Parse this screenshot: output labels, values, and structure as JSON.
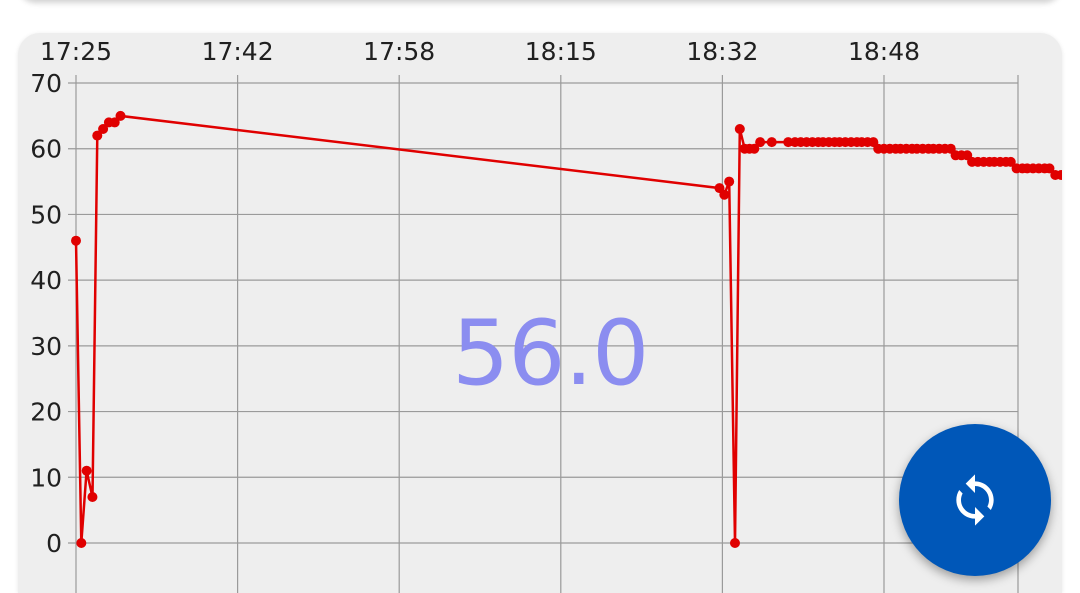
{
  "display": {
    "current_value": "56.0"
  },
  "refresh_button": {
    "icon": "sync-icon",
    "color": "#0057b8"
  },
  "chart_data": {
    "type": "line",
    "title": "",
    "xlabel": "",
    "ylabel": "",
    "line_color": "#e00000",
    "grid": true,
    "ylim": [
      0,
      70
    ],
    "y_ticks": [
      0,
      10,
      20,
      30,
      40,
      50,
      60,
      70
    ],
    "x_ticks": [
      "17:25",
      "17:42",
      "17:58",
      "18:15",
      "18:32",
      "18:48"
    ],
    "x_tick_minutes": [
      0,
      16.7,
      33.4,
      50.1,
      66.8,
      83.5
    ],
    "series": [
      {
        "points": [
          [
            0.0,
            46
          ],
          [
            0.55,
            0
          ],
          [
            1.1,
            11
          ],
          [
            1.7,
            7
          ],
          [
            2.2,
            62
          ],
          [
            2.8,
            63
          ],
          [
            3.4,
            64
          ],
          [
            4.0,
            64
          ],
          [
            4.6,
            65
          ],
          [
            66.5,
            54
          ],
          [
            67.0,
            53
          ],
          [
            67.5,
            55
          ],
          [
            68.1,
            0
          ],
          [
            68.6,
            63
          ],
          [
            69.1,
            60
          ],
          [
            69.6,
            60
          ],
          [
            70.1,
            60
          ],
          [
            70.7,
            61
          ],
          [
            71.9,
            61
          ],
          [
            73.6,
            61
          ],
          [
            74.3,
            61
          ],
          [
            74.9,
            61
          ],
          [
            75.5,
            61
          ],
          [
            76.1,
            61
          ],
          [
            76.7,
            61
          ],
          [
            77.2,
            61
          ],
          [
            77.8,
            61
          ],
          [
            78.4,
            61
          ],
          [
            78.9,
            61
          ],
          [
            79.5,
            61
          ],
          [
            80.1,
            61
          ],
          [
            80.7,
            61
          ],
          [
            81.2,
            61
          ],
          [
            81.8,
            61
          ],
          [
            82.4,
            61
          ],
          [
            82.9,
            60
          ],
          [
            83.5,
            60
          ],
          [
            84.1,
            60
          ],
          [
            84.7,
            60
          ],
          [
            85.2,
            60
          ],
          [
            85.8,
            60
          ],
          [
            86.4,
            60
          ],
          [
            86.9,
            60
          ],
          [
            87.5,
            60
          ],
          [
            88.1,
            60
          ],
          [
            88.6,
            60
          ],
          [
            89.2,
            60
          ],
          [
            89.8,
            60
          ],
          [
            90.4,
            60
          ],
          [
            90.9,
            59
          ],
          [
            91.5,
            59
          ],
          [
            92.1,
            59
          ],
          [
            92.6,
            58
          ],
          [
            93.2,
            58
          ],
          [
            93.8,
            58
          ],
          [
            94.4,
            58
          ],
          [
            94.9,
            58
          ],
          [
            95.5,
            58
          ],
          [
            96.1,
            58
          ],
          [
            96.6,
            58
          ],
          [
            97.2,
            57
          ],
          [
            97.8,
            57
          ],
          [
            98.3,
            57
          ],
          [
            98.9,
            57
          ],
          [
            99.5,
            57
          ],
          [
            100.1,
            57
          ],
          [
            100.6,
            57
          ],
          [
            101.2,
            56
          ],
          [
            101.8,
            56
          ]
        ]
      }
    ]
  }
}
